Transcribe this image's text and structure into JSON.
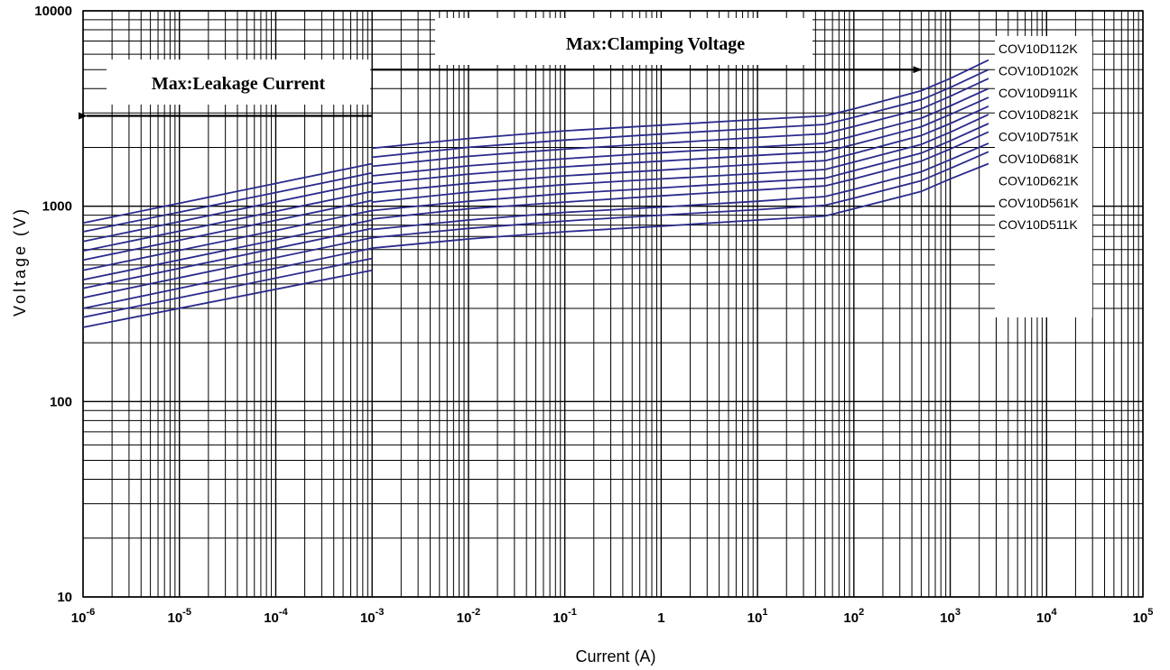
{
  "chart_data": {
    "type": "line",
    "xlabel": "Current  (A)",
    "ylabel": "Voltage  (V)",
    "x_scale": "log",
    "y_scale": "log",
    "xlim": [
      1e-06,
      100000
    ],
    "ylim": [
      10,
      10000
    ],
    "x_ticks": [
      "10",
      "10",
      "10",
      "10",
      "10",
      "10",
      "1",
      "10",
      "10",
      "10",
      "10",
      "10"
    ],
    "x_tick_exponents": [
      "-6",
      "-5",
      "-4",
      "-3",
      "-2",
      "-1",
      "",
      "1",
      "2",
      "3",
      "4",
      "5"
    ],
    "y_ticks": [
      "10",
      "100",
      "1000",
      "10000"
    ],
    "grid": true,
    "line_color": "#2a2a8c",
    "legend_placement": "right, beside line ends",
    "annotations": [
      {
        "text": "Max:Leakage Current",
        "arrow": "left",
        "arrow_from_x": 0.001,
        "arrow_to_x": 1e-06,
        "arrow_y": 2900
      },
      {
        "text": "Max:Clamping Voltage",
        "arrow": "right",
        "arrow_from_x": 0.001,
        "arrow_to_x": 500,
        "arrow_y": 5000
      }
    ],
    "series": [
      {
        "name": "COV10D112K",
        "leakage": {
          "x": [
            1e-06,
            0.001
          ],
          "y": [
            820,
            1650
          ]
        },
        "clamping": {
          "x": [
            0.001,
            0.01,
            0.1,
            1,
            10,
            50,
            100,
            500,
            1000,
            2500
          ],
          "y": [
            1980,
            2220,
            2430,
            2600,
            2780,
            2900,
            3150,
            3900,
            4500,
            5600
          ]
        }
      },
      {
        "name": "COV10D102K",
        "leakage": {
          "x": [
            1e-06,
            0.001
          ],
          "y": [
            740,
            1480
          ]
        },
        "clamping": {
          "x": [
            0.001,
            0.01,
            0.1,
            1,
            10,
            50,
            100,
            500,
            1000,
            2500
          ],
          "y": [
            1780,
            2000,
            2180,
            2340,
            2500,
            2620,
            2850,
            3500,
            4050,
            5000
          ]
        }
      },
      {
        "name": "COV10D911K",
        "leakage": {
          "x": [
            1e-06,
            0.001
          ],
          "y": [
            660,
            1330
          ]
        },
        "clamping": {
          "x": [
            0.001,
            0.01,
            0.1,
            1,
            10,
            50,
            100,
            500,
            1000,
            2500
          ],
          "y": [
            1600,
            1800,
            1960,
            2100,
            2250,
            2350,
            2560,
            3150,
            3650,
            4500
          ]
        }
      },
      {
        "name": "COV10D821K",
        "leakage": {
          "x": [
            1e-06,
            0.001
          ],
          "y": [
            590,
            1190
          ]
        },
        "clamping": {
          "x": [
            0.001,
            0.01,
            0.1,
            1,
            10,
            50,
            100,
            500,
            1000,
            2500
          ],
          "y": [
            1430,
            1610,
            1750,
            1880,
            2010,
            2100,
            2290,
            2820,
            3260,
            4000
          ]
        }
      },
      {
        "name": "COV10D751K",
        "leakage": {
          "x": [
            1e-06,
            0.001
          ],
          "y": [
            530,
            1070
          ]
        },
        "clamping": {
          "x": [
            0.001,
            0.01,
            0.1,
            1,
            10,
            50,
            100,
            500,
            1000,
            2500
          ],
          "y": [
            1300,
            1460,
            1590,
            1700,
            1820,
            1900,
            2070,
            2550,
            2950,
            3600
          ]
        }
      },
      {
        "name": "COV10D681K",
        "leakage": {
          "x": [
            1e-06,
            0.001
          ],
          "y": [
            470,
            950
          ]
        },
        "clamping": {
          "x": [
            0.001,
            0.01,
            0.1,
            1,
            10,
            50,
            100,
            500,
            1000,
            2500
          ],
          "y": [
            1170,
            1310,
            1430,
            1530,
            1640,
            1710,
            1860,
            2300,
            2650,
            3250
          ]
        }
      },
      {
        "name": "COV10D621K",
        "leakage": {
          "x": [
            1e-06,
            0.001
          ],
          "y": [
            420,
            850
          ]
        },
        "clamping": {
          "x": [
            0.001,
            0.01,
            0.1,
            1,
            10,
            50,
            100,
            500,
            1000,
            2500
          ],
          "y": [
            1050,
            1180,
            1290,
            1380,
            1470,
            1540,
            1680,
            2070,
            2390,
            2950
          ]
        }
      },
      {
        "name": "COV10D561K",
        "leakage": {
          "x": [
            1e-06,
            0.001
          ],
          "y": [
            380,
            770
          ]
        },
        "clamping": {
          "x": [
            0.001,
            0.01,
            0.1,
            1,
            10,
            50,
            100,
            500,
            1000,
            2500
          ],
          "y": [
            950,
            1060,
            1160,
            1240,
            1330,
            1390,
            1520,
            1870,
            2160,
            2650
          ]
        }
      },
      {
        "name": "COV10D511K",
        "leakage": {
          "x": [
            1e-06,
            0.001
          ],
          "y": [
            340,
            690
          ]
        },
        "clamping": {
          "x": [
            0.001,
            0.01,
            0.1,
            1,
            10,
            50,
            100,
            500,
            1000,
            2500
          ],
          "y": [
            860,
            970,
            1050,
            1130,
            1210,
            1270,
            1380,
            1700,
            1960,
            2400
          ]
        }
      },
      {
        "name": "",
        "leakage": {
          "x": [
            1e-06,
            0.001
          ],
          "y": [
            300,
            610
          ]
        },
        "clamping": {
          "x": [
            0.001,
            0.01,
            0.1,
            1,
            10,
            50,
            100,
            500,
            1000,
            2500
          ],
          "y": [
            760,
            850,
            930,
            990,
            1060,
            1120,
            1220,
            1500,
            1730,
            2100
          ]
        }
      },
      {
        "name": "",
        "leakage": {
          "x": [
            1e-06,
            0.001
          ],
          "y": [
            270,
            540
          ]
        },
        "clamping": {
          "x": [
            0.001,
            0.01,
            0.1,
            1,
            10,
            50,
            100,
            500,
            1000,
            2500
          ],
          "y": [
            690,
            770,
            840,
            900,
            960,
            1010,
            1100,
            1350,
            1560,
            1900
          ]
        }
      },
      {
        "name": "",
        "leakage": {
          "x": [
            1e-06,
            0.001
          ],
          "y": [
            240,
            470
          ]
        },
        "clamping": {
          "x": [
            0.001,
            0.01,
            0.1,
            1,
            10,
            50,
            100,
            500,
            1000,
            2500
          ],
          "y": [
            610,
            680,
            740,
            790,
            850,
            890,
            970,
            1190,
            1380,
            1650
          ]
        }
      }
    ]
  }
}
